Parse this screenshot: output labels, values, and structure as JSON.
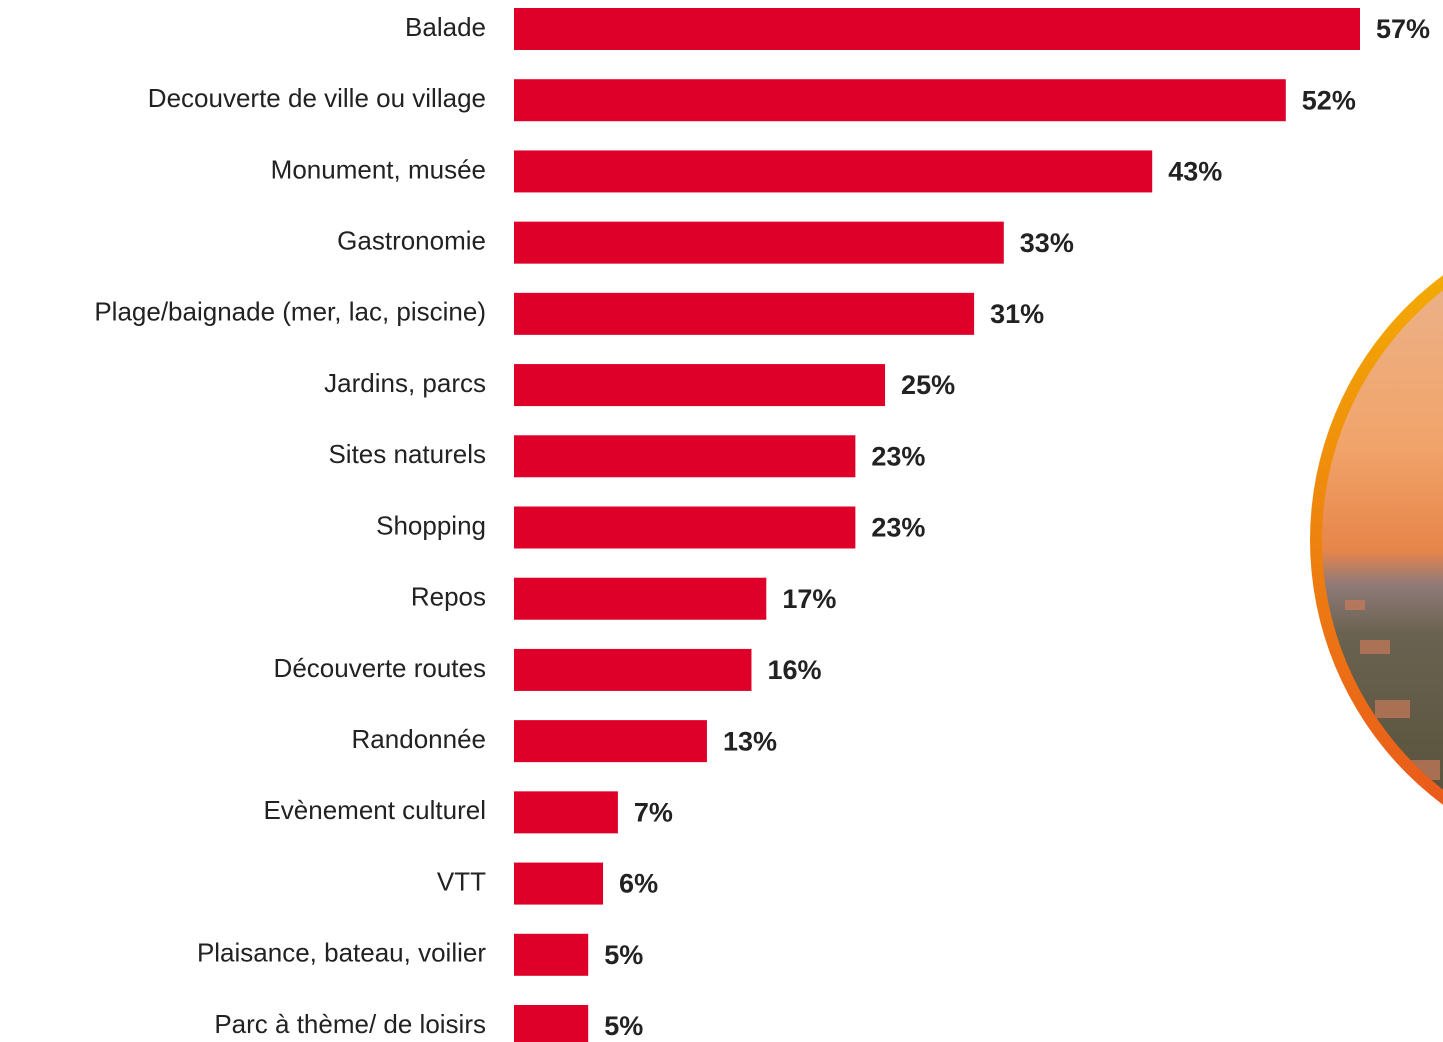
{
  "chart_data": {
    "type": "bar",
    "orientation": "horizontal",
    "color": "#de0029",
    "categories": [
      "Balade",
      "Decouverte de ville ou village",
      "Monument, musée",
      "Gastronomie",
      "Plage/baignade (mer, lac, piscine)",
      "Jardins, parcs",
      "Sites naturels",
      "Shopping",
      "Repos",
      "Découverte routes",
      "Randonnée",
      "Evènement culturel",
      "VTT",
      "Plaisance, bateau, voilier",
      "Parc à thème/ de loisirs"
    ],
    "values": [
      57,
      52,
      43,
      33,
      31,
      25,
      23,
      23,
      17,
      16,
      13,
      7,
      6,
      5,
      5
    ],
    "value_labels": [
      "57%",
      "52%",
      "43%",
      "33%",
      "31%",
      "25%",
      "23%",
      "23%",
      "17%",
      "16%",
      "13%",
      "7%",
      "6%",
      "5%",
      "5%"
    ]
  }
}
